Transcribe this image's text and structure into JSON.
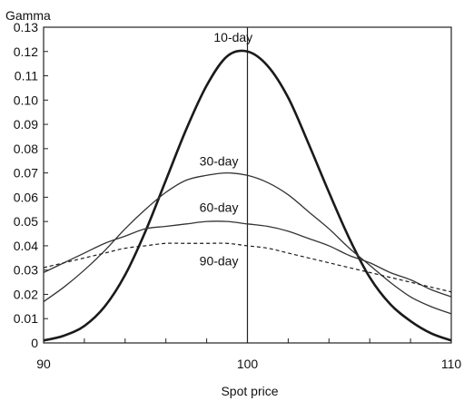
{
  "chart_data": {
    "type": "line",
    "title": "",
    "ylabel": "Gamma",
    "xlabel": "Spot price",
    "xlim": [
      90,
      110
    ],
    "ylim": [
      0,
      0.13
    ],
    "x_ticks": [
      "90",
      "100",
      "110"
    ],
    "y_ticks": [
      "0",
      "0.01",
      "0.02",
      "0.03",
      "0.04",
      "0.05",
      "0.06",
      "0.07",
      "0.08",
      "0.09",
      "0.10",
      "0.11",
      "0.12",
      "0.13"
    ],
    "x": [
      90,
      91,
      92,
      93,
      94,
      95,
      96,
      97,
      98,
      99,
      100,
      101,
      102,
      103,
      104,
      105,
      106,
      107,
      108,
      109,
      110
    ],
    "series": [
      {
        "name": "10-day",
        "style": "solid-thick",
        "values": [
          0.001,
          0.003,
          0.007,
          0.015,
          0.028,
          0.046,
          0.067,
          0.088,
          0.106,
          0.118,
          0.12,
          0.114,
          0.101,
          0.082,
          0.062,
          0.043,
          0.027,
          0.016,
          0.009,
          0.004,
          0.001
        ]
      },
      {
        "name": "30-day",
        "style": "solid",
        "values": [
          0.017,
          0.023,
          0.03,
          0.038,
          0.047,
          0.055,
          0.062,
          0.067,
          0.069,
          0.07,
          0.069,
          0.066,
          0.061,
          0.054,
          0.047,
          0.039,
          0.032,
          0.025,
          0.019,
          0.015,
          0.012
        ]
      },
      {
        "name": "60-day",
        "style": "solid",
        "values": [
          0.029,
          0.033,
          0.037,
          0.041,
          0.044,
          0.047,
          0.048,
          0.049,
          0.05,
          0.05,
          0.049,
          0.048,
          0.046,
          0.043,
          0.04,
          0.036,
          0.033,
          0.029,
          0.026,
          0.022,
          0.019
        ]
      },
      {
        "name": "90-day",
        "style": "dashed",
        "values": [
          0.031,
          0.033,
          0.035,
          0.037,
          0.039,
          0.04,
          0.041,
          0.041,
          0.041,
          0.041,
          0.04,
          0.039,
          0.037,
          0.035,
          0.033,
          0.031,
          0.029,
          0.027,
          0.025,
          0.023,
          0.021
        ]
      }
    ],
    "vertical_line_x": 100,
    "label_positions": [
      {
        "series": "10-day",
        "x": 99.3,
        "y": 0.124
      },
      {
        "series": "30-day",
        "x": 98.6,
        "y": 0.073
      },
      {
        "series": "60-day",
        "x": 98.6,
        "y": 0.054
      },
      {
        "series": "90-day",
        "x": 98.6,
        "y": 0.032
      }
    ],
    "grid": false
  }
}
